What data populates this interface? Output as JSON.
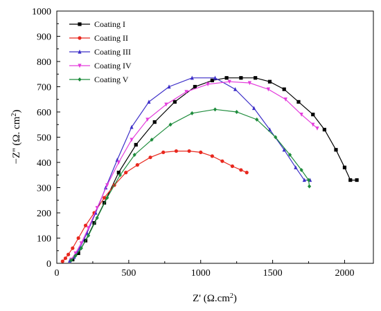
{
  "chart_data": {
    "type": "line",
    "xlabel": "Z' (Ω.cm²)",
    "ylabel": "−Z'' (Ω. cm²)",
    "xlim": [
      0,
      2200
    ],
    "ylim": [
      0,
      1000
    ],
    "xticks": [
      0,
      500,
      1000,
      1500,
      2000
    ],
    "yticks": [
      0,
      100,
      200,
      300,
      400,
      500,
      600,
      700,
      800,
      900,
      1000
    ],
    "grid": false,
    "legend_position": "top-left",
    "series": [
      {
        "name": "Coating I",
        "color": "#000000",
        "marker": "square",
        "x": [
          110,
          150,
          200,
          260,
          330,
          430,
          550,
          680,
          820,
          960,
          1080,
          1180,
          1280,
          1380,
          1480,
          1580,
          1680,
          1780,
          1860,
          1940,
          2000,
          2040,
          2085
        ],
        "y": [
          15,
          40,
          90,
          160,
          240,
          360,
          470,
          560,
          640,
          700,
          725,
          735,
          735,
          735,
          720,
          690,
          640,
          590,
          530,
          450,
          380,
          330,
          330
        ]
      },
      {
        "name": "Coating II",
        "color": "#e8281e",
        "marker": "circle",
        "x": [
          40,
          60,
          80,
          110,
          150,
          200,
          260,
          330,
          400,
          480,
          560,
          650,
          740,
          830,
          920,
          1000,
          1080,
          1150,
          1220,
          1280,
          1320
        ],
        "y": [
          8,
          20,
          35,
          60,
          100,
          150,
          200,
          260,
          310,
          360,
          390,
          420,
          440,
          445,
          445,
          440,
          425,
          405,
          385,
          370,
          360
        ]
      },
      {
        "name": "Coating III",
        "color": "#3c2ec8",
        "marker": "triangle-up",
        "x": [
          90,
          120,
          160,
          210,
          270,
          340,
          420,
          520,
          640,
          780,
          940,
          1100,
          1240,
          1370,
          1480,
          1580,
          1660,
          1720,
          1760
        ],
        "y": [
          10,
          25,
          60,
          120,
          200,
          300,
          410,
          540,
          640,
          700,
          735,
          735,
          690,
          615,
          530,
          450,
          380,
          330,
          330
        ]
      },
      {
        "name": "Coating IV",
        "color": "#e43cdc",
        "marker": "triangle-down",
        "x": [
          100,
          130,
          170,
          220,
          280,
          350,
          430,
          520,
          630,
          760,
          900,
          1050,
          1200,
          1340,
          1470,
          1590,
          1700,
          1780,
          1810
        ],
        "y": [
          15,
          40,
          80,
          140,
          220,
          310,
          400,
          490,
          570,
          630,
          680,
          710,
          720,
          715,
          690,
          650,
          590,
          550,
          535
        ]
      },
      {
        "name": "Coating V",
        "color": "#1e8c3c",
        "marker": "diamond",
        "x": [
          100,
          130,
          170,
          220,
          280,
          350,
          440,
          540,
          660,
          790,
          940,
          1100,
          1250,
          1390,
          1520,
          1620,
          1700,
          1750,
          1755
        ],
        "y": [
          12,
          30,
          60,
          110,
          180,
          260,
          350,
          430,
          490,
          550,
          595,
          610,
          600,
          570,
          500,
          430,
          370,
          330,
          305
        ]
      }
    ]
  }
}
